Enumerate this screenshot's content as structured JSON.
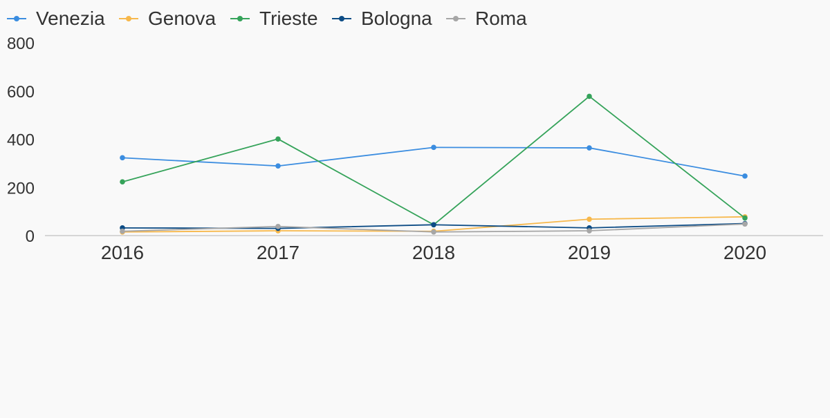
{
  "chart_data": {
    "type": "line",
    "title": "",
    "xlabel": "",
    "ylabel": "",
    "x": [
      "2016",
      "2017",
      "2018",
      "2019",
      "2020"
    ],
    "ylim": [
      0,
      800
    ],
    "yticks": [
      0,
      200,
      400,
      600,
      800
    ],
    "grid": false,
    "legend_position": "top-left",
    "series": [
      {
        "name": "Venezia",
        "color": "#3b8de0",
        "values": [
          323,
          289,
          366,
          364,
          247
        ]
      },
      {
        "name": "Genova",
        "color": "#f7b84b",
        "values": [
          15,
          20,
          18,
          68,
          78
        ]
      },
      {
        "name": "Trieste",
        "color": "#35a35a",
        "values": [
          223,
          401,
          45,
          578,
          73
        ]
      },
      {
        "name": "Bologna",
        "color": "#0d4c85",
        "values": [
          32,
          30,
          45,
          32,
          50
        ]
      },
      {
        "name": "Roma",
        "color": "#a6a6a6",
        "values": [
          18,
          38,
          15,
          20,
          48
        ]
      }
    ]
  }
}
